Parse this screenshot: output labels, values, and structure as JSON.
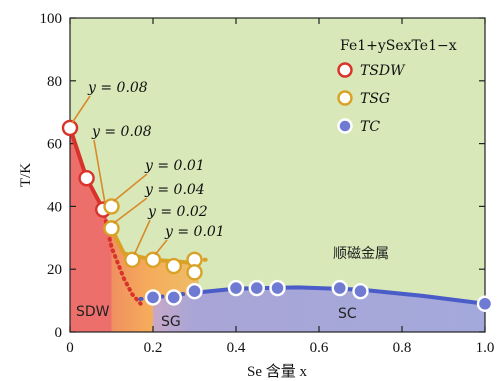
{
  "chart_data": {
    "type": "scatter",
    "xlabel": "Se 含量 x",
    "ylabel": "T/K",
    "xlim": [
      0,
      1.0
    ],
    "ylim": [
      0,
      100
    ],
    "xticks": [
      "0",
      "0.2",
      "0.4",
      "0.6",
      "0.8",
      "1.0"
    ],
    "yticks": [
      "0",
      "20",
      "40",
      "60",
      "80",
      "100"
    ],
    "legend": {
      "title": "Fe1+ySexTe1−x",
      "placement": "top-right",
      "entries": [
        "TSDW",
        "TSG",
        "TC"
      ]
    },
    "colors": {
      "sdw": "#d8322a",
      "sg": "#d9a227",
      "sc": "#6f7bd2",
      "bg": "#d8e8b8"
    },
    "series": [
      {
        "name": "TSDW",
        "points": [
          [
            0.0,
            65
          ],
          [
            0.04,
            49
          ],
          [
            0.08,
            39
          ]
        ]
      },
      {
        "name": "TSG",
        "points": [
          [
            0.1,
            40
          ],
          [
            0.1,
            33
          ],
          [
            0.15,
            23
          ],
          [
            0.2,
            23
          ],
          [
            0.25,
            21
          ],
          [
            0.3,
            23
          ],
          [
            0.3,
            19
          ]
        ]
      },
      {
        "name": "TC",
        "points": [
          [
            0.2,
            11
          ],
          [
            0.25,
            11
          ],
          [
            0.3,
            13
          ],
          [
            0.4,
            14
          ],
          [
            0.45,
            14
          ],
          [
            0.5,
            14
          ],
          [
            0.65,
            14
          ],
          [
            0.7,
            13
          ],
          [
            1.0,
            9
          ]
        ]
      }
    ],
    "annotations": [
      {
        "text": "y = 0.08",
        "x": 0.0,
        "y": 65
      },
      {
        "text": "y = 0.08",
        "x": 0.08,
        "y": 39
      },
      {
        "text": "y = 0.01",
        "x": 0.1,
        "y": 40
      },
      {
        "text": "y = 0.04",
        "x": 0.1,
        "y": 33
      },
      {
        "text": "y = 0.02",
        "x": 0.15,
        "y": 23
      },
      {
        "text": "y = 0.01",
        "x": 0.2,
        "y": 23
      }
    ],
    "regions": [
      "SDW",
      "SG",
      "SC",
      "顺磁金属"
    ]
  }
}
